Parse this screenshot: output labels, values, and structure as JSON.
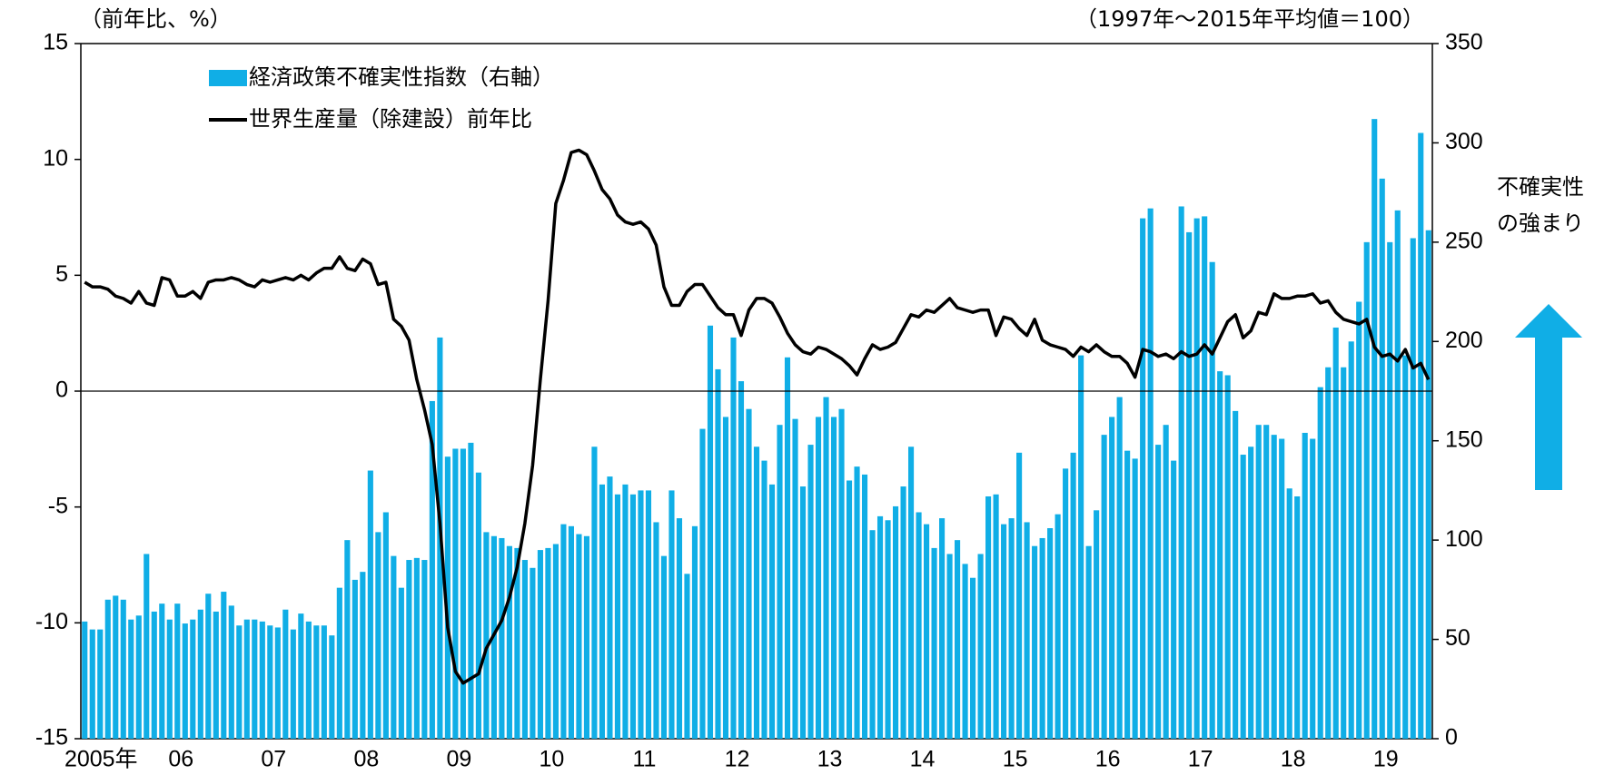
{
  "chart_data": {
    "type": "combo",
    "y_label": "（前年比、%）",
    "y2_label": "（1997年～2015年平均値＝100）",
    "annotation": [
      "不確実性",
      "の強まり"
    ],
    "categories": [
      "2005年",
      null,
      null,
      null,
      null,
      null,
      null,
      null,
      null,
      null,
      null,
      null,
      "06",
      null,
      null,
      null,
      null,
      null,
      null,
      null,
      null,
      null,
      null,
      null,
      "07",
      null,
      null,
      null,
      null,
      null,
      null,
      null,
      null,
      null,
      null,
      null,
      "08",
      null,
      null,
      null,
      null,
      null,
      null,
      null,
      null,
      null,
      null,
      null,
      "09",
      null,
      null,
      null,
      null,
      null,
      null,
      null,
      null,
      null,
      null,
      null,
      "10",
      null,
      null,
      null,
      null,
      null,
      null,
      null,
      null,
      null,
      null,
      null,
      "11",
      null,
      null,
      null,
      null,
      null,
      null,
      null,
      null,
      null,
      null,
      null,
      "12",
      null,
      null,
      null,
      null,
      null,
      null,
      null,
      null,
      null,
      null,
      null,
      "13",
      null,
      null,
      null,
      null,
      null,
      null,
      null,
      null,
      null,
      null,
      null,
      "14",
      null,
      null,
      null,
      null,
      null,
      null,
      null,
      null,
      null,
      null,
      null,
      "15",
      null,
      null,
      null,
      null,
      null,
      null,
      null,
      null,
      null,
      null,
      null,
      "16",
      null,
      null,
      null,
      null,
      null,
      null,
      null,
      null,
      null,
      null,
      null,
      "17",
      null,
      null,
      null,
      null,
      null,
      null,
      null,
      null,
      null,
      null,
      null,
      "18",
      null,
      null,
      null,
      null,
      null,
      null,
      null,
      null,
      null,
      null,
      null,
      "19",
      null,
      null,
      null,
      null,
      null,
      null
    ],
    "series": [
      {
        "name": "経済政策不確実性指数（右軸）",
        "type": "bar",
        "axis": "y2",
        "color": "#10aee6",
        "values": [
          59,
          55,
          55,
          70,
          72,
          70,
          60,
          62,
          93,
          64,
          68,
          60,
          68,
          58,
          60,
          65,
          73,
          64,
          74,
          67,
          57,
          60,
          60,
          59,
          57,
          56,
          65,
          55,
          63,
          59,
          57,
          57,
          52,
          76,
          100,
          80,
          84,
          135,
          104,
          114,
          92,
          76,
          90,
          91,
          90,
          170,
          202,
          142,
          146,
          146,
          149,
          134,
          104,
          102,
          101,
          97,
          96,
          90,
          86,
          95,
          96,
          98,
          108,
          107,
          103,
          102,
          147,
          128,
          132,
          123,
          128,
          123,
          125,
          125,
          109,
          92,
          125,
          111,
          83,
          107,
          156,
          208,
          186,
          162,
          202,
          180,
          166,
          147,
          140,
          128,
          158,
          192,
          161,
          127,
          148,
          162,
          172,
          162,
          166,
          130,
          137,
          133,
          105,
          112,
          110,
          117,
          127,
          147,
          114,
          108,
          96,
          111,
          93,
          100,
          88,
          81,
          93,
          122,
          123,
          108,
          111,
          144,
          109,
          97,
          101,
          106,
          113,
          136,
          144,
          193,
          97,
          115,
          153,
          162,
          172,
          145,
          141,
          262,
          267,
          148,
          158,
          140,
          268,
          255,
          262,
          263,
          240,
          185,
          183,
          165,
          143,
          147,
          158,
          158,
          153,
          151,
          126,
          122,
          154,
          151,
          177,
          187,
          207,
          187,
          200,
          220,
          250,
          312,
          282,
          250,
          266,
          193,
          252,
          305,
          256
        ]
      },
      {
        "name": "世界生産量（除建設）前年比",
        "type": "line",
        "axis": "y",
        "color": "#000000",
        "values": [
          4.7,
          4.5,
          4.5,
          4.4,
          4.1,
          4.0,
          3.8,
          4.3,
          3.8,
          3.7,
          4.9,
          4.8,
          4.1,
          4.1,
          4.3,
          4.0,
          4.7,
          4.8,
          4.8,
          4.9,
          4.8,
          4.6,
          4.5,
          4.8,
          4.7,
          4.8,
          4.9,
          4.8,
          5.0,
          4.8,
          5.1,
          5.3,
          5.3,
          5.8,
          5.3,
          5.2,
          5.7,
          5.5,
          4.6,
          4.7,
          3.1,
          2.8,
          2.2,
          0.5,
          -0.8,
          -2.3,
          -5.7,
          -10.2,
          -12.1,
          -12.6,
          -12.4,
          -12.2,
          -11.1,
          -10.5,
          -9.9,
          -8.9,
          -7.6,
          -5.7,
          -3.2,
          0.5,
          3.9,
          8.1,
          9.1,
          10.3,
          10.4,
          10.2,
          9.5,
          8.7,
          8.3,
          7.6,
          7.3,
          7.2,
          7.3,
          7.0,
          6.3,
          4.5,
          3.7,
          3.7,
          4.3,
          4.6,
          4.6,
          4.1,
          3.6,
          3.3,
          3.3,
          2.4,
          3.5,
          4.0,
          4.0,
          3.8,
          3.2,
          2.5,
          2.0,
          1.7,
          1.6,
          1.9,
          1.8,
          1.6,
          1.4,
          1.1,
          0.7,
          1.4,
          2.0,
          1.8,
          1.9,
          2.1,
          2.7,
          3.3,
          3.2,
          3.5,
          3.4,
          3.7,
          4.0,
          3.6,
          3.5,
          3.4,
          3.5,
          3.5,
          2.4,
          3.2,
          3.1,
          2.7,
          2.4,
          3.1,
          2.2,
          2.0,
          1.9,
          1.8,
          1.5,
          1.9,
          1.7,
          2.0,
          1.7,
          1.5,
          1.5,
          1.2,
          0.6,
          1.8,
          1.7,
          1.5,
          1.6,
          1.4,
          1.7,
          1.5,
          1.6,
          2.0,
          1.6,
          2.3,
          3.0,
          3.3,
          2.3,
          2.6,
          3.4,
          3.3,
          4.2,
          4.0,
          4.0,
          4.1,
          4.1,
          4.2,
          3.8,
          3.9,
          3.4,
          3.1,
          3.0,
          2.9,
          3.1,
          1.9,
          1.5,
          1.6,
          1.3,
          1.8,
          1.0,
          1.2,
          0.5
        ]
      }
    ],
    "ylim": [
      -15,
      15
    ],
    "yticks": [
      -15,
      -10,
      -5,
      0,
      5,
      10,
      15
    ],
    "y2lim": [
      0,
      350
    ],
    "y2ticks": [
      0,
      50,
      100,
      150,
      200,
      250,
      300,
      350
    ],
    "zero_line": true
  }
}
